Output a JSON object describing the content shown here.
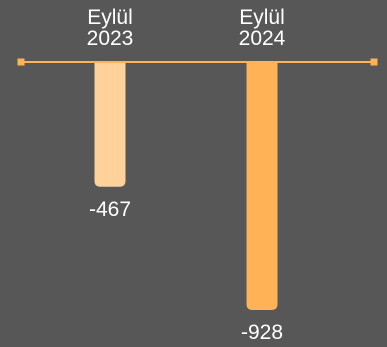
{
  "chart_data": {
    "type": "bar",
    "categories": [
      [
        "Eylül",
        "2023"
      ],
      [
        "Eylül",
        "2024"
      ]
    ],
    "values": [
      -467,
      -928
    ],
    "value_labels": [
      "-467",
      "-928"
    ],
    "bar_colors": [
      "#ffd29b",
      "#ffb256"
    ],
    "axis_color": "#ffb256",
    "ylim": [
      -928,
      0
    ],
    "grid": false,
    "legend": "none"
  }
}
